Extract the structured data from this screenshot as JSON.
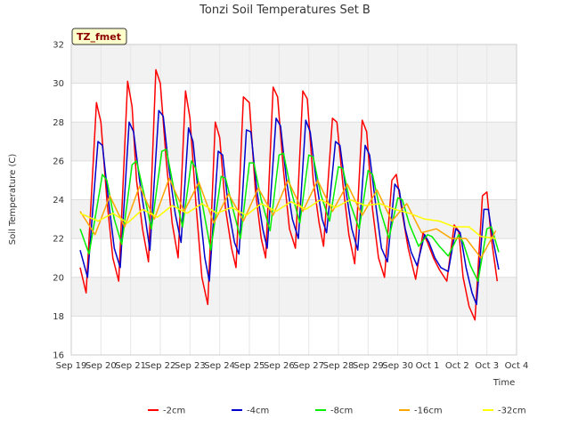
{
  "chart_data": {
    "type": "line",
    "title": "Tonzi Soil Temperatures Set B",
    "xlabel": "Time",
    "ylabel": "Soil Temperature (C)",
    "badge": "TZ_fmet",
    "ylim": [
      16,
      32
    ],
    "yticks": [
      16,
      18,
      20,
      22,
      24,
      26,
      28,
      30,
      32
    ],
    "xlim": [
      0,
      15
    ],
    "xtick_labels": [
      "Sep 19",
      "Sep 20",
      "Sep 21",
      "Sep 22",
      "Sep 23",
      "Sep 24",
      "Sep 25",
      "Sep 26",
      "Sep 27",
      "Sep 28",
      "Sep 29",
      "Sep 30",
      "Oct 1",
      "Oct 2",
      "Oct 3",
      "Oct 4"
    ],
    "legend_position": "bottom",
    "grid": true,
    "series": [
      {
        "name": "-2cm",
        "color": "#ff0000",
        "values": [
          [
            0.3,
            20.5
          ],
          [
            0.5,
            19.2
          ],
          [
            0.85,
            29.0
          ],
          [
            1.0,
            28.0
          ],
          [
            1.2,
            24.0
          ],
          [
            1.4,
            21.0
          ],
          [
            1.6,
            19.8
          ],
          [
            1.9,
            30.1
          ],
          [
            2.05,
            28.8
          ],
          [
            2.2,
            25.0
          ],
          [
            2.4,
            22.5
          ],
          [
            2.6,
            20.8
          ],
          [
            2.85,
            30.7
          ],
          [
            3.0,
            30.0
          ],
          [
            3.2,
            26.0
          ],
          [
            3.4,
            22.8
          ],
          [
            3.6,
            21.0
          ],
          [
            3.85,
            29.6
          ],
          [
            4.0,
            28.2
          ],
          [
            4.2,
            23.8
          ],
          [
            4.4,
            20.0
          ],
          [
            4.6,
            18.6
          ],
          [
            4.85,
            28.0
          ],
          [
            5.0,
            27.2
          ],
          [
            5.2,
            23.5
          ],
          [
            5.4,
            21.5
          ],
          [
            5.55,
            20.5
          ],
          [
            5.8,
            29.3
          ],
          [
            6.0,
            29.0
          ],
          [
            6.2,
            24.5
          ],
          [
            6.4,
            22.0
          ],
          [
            6.55,
            21.0
          ],
          [
            6.8,
            29.8
          ],
          [
            6.95,
            29.3
          ],
          [
            7.15,
            25.5
          ],
          [
            7.35,
            22.5
          ],
          [
            7.55,
            21.5
          ],
          [
            7.8,
            29.6
          ],
          [
            7.95,
            29.2
          ],
          [
            8.15,
            25.0
          ],
          [
            8.35,
            22.8
          ],
          [
            8.5,
            21.6
          ],
          [
            8.8,
            28.2
          ],
          [
            8.95,
            28.0
          ],
          [
            9.15,
            24.8
          ],
          [
            9.35,
            22.2
          ],
          [
            9.55,
            20.7
          ],
          [
            9.8,
            28.1
          ],
          [
            9.95,
            27.5
          ],
          [
            10.15,
            23.5
          ],
          [
            10.35,
            21.0
          ],
          [
            10.55,
            20.0
          ],
          [
            10.8,
            25.0
          ],
          [
            10.95,
            25.3
          ],
          [
            11.15,
            23.3
          ],
          [
            11.35,
            21.5
          ],
          [
            11.6,
            19.9
          ],
          [
            11.85,
            22.3
          ],
          [
            12.0,
            21.8
          ],
          [
            12.2,
            21.0
          ],
          [
            12.4,
            20.4
          ],
          [
            12.65,
            19.8
          ],
          [
            12.9,
            22.7
          ],
          [
            13.05,
            22.4
          ],
          [
            13.2,
            20.0
          ],
          [
            13.4,
            18.5
          ],
          [
            13.6,
            17.8
          ],
          [
            13.85,
            24.2
          ],
          [
            14.0,
            24.4
          ],
          [
            14.15,
            22.0
          ],
          [
            14.35,
            19.8
          ]
        ]
      },
      {
        "name": "-4cm",
        "color": "#0000cc",
        "values": [
          [
            0.3,
            21.4
          ],
          [
            0.55,
            20.0
          ],
          [
            0.9,
            27.0
          ],
          [
            1.05,
            26.8
          ],
          [
            1.25,
            24.0
          ],
          [
            1.45,
            21.5
          ],
          [
            1.65,
            20.5
          ],
          [
            1.95,
            28.0
          ],
          [
            2.1,
            27.5
          ],
          [
            2.3,
            25.0
          ],
          [
            2.5,
            23.0
          ],
          [
            2.65,
            21.4
          ],
          [
            2.95,
            28.6
          ],
          [
            3.1,
            28.3
          ],
          [
            3.3,
            25.5
          ],
          [
            3.5,
            23.3
          ],
          [
            3.7,
            21.8
          ],
          [
            3.95,
            27.7
          ],
          [
            4.1,
            27.0
          ],
          [
            4.3,
            24.0
          ],
          [
            4.5,
            21.0
          ],
          [
            4.65,
            19.8
          ],
          [
            4.95,
            26.5
          ],
          [
            5.1,
            26.3
          ],
          [
            5.3,
            23.5
          ],
          [
            5.5,
            21.8
          ],
          [
            5.65,
            21.2
          ],
          [
            5.9,
            27.6
          ],
          [
            6.05,
            27.5
          ],
          [
            6.25,
            24.5
          ],
          [
            6.45,
            22.5
          ],
          [
            6.6,
            21.5
          ],
          [
            6.9,
            28.2
          ],
          [
            7.05,
            27.8
          ],
          [
            7.25,
            25.0
          ],
          [
            7.45,
            23.0
          ],
          [
            7.65,
            22.0
          ],
          [
            7.9,
            28.1
          ],
          [
            8.05,
            27.5
          ],
          [
            8.25,
            25.0
          ],
          [
            8.45,
            23.0
          ],
          [
            8.6,
            22.3
          ],
          [
            8.9,
            27.0
          ],
          [
            9.05,
            26.8
          ],
          [
            9.25,
            24.5
          ],
          [
            9.45,
            22.5
          ],
          [
            9.65,
            21.4
          ],
          [
            9.9,
            26.8
          ],
          [
            10.05,
            26.3
          ],
          [
            10.25,
            23.8
          ],
          [
            10.45,
            21.5
          ],
          [
            10.65,
            20.8
          ],
          [
            10.9,
            24.8
          ],
          [
            11.05,
            24.5
          ],
          [
            11.25,
            22.5
          ],
          [
            11.45,
            21.3
          ],
          [
            11.65,
            20.6
          ],
          [
            11.9,
            22.2
          ],
          [
            12.05,
            21.8
          ],
          [
            12.25,
            21.0
          ],
          [
            12.45,
            20.5
          ],
          [
            12.7,
            20.3
          ],
          [
            12.95,
            22.5
          ],
          [
            13.1,
            22.3
          ],
          [
            13.3,
            20.5
          ],
          [
            13.5,
            19.2
          ],
          [
            13.65,
            18.6
          ],
          [
            13.9,
            23.5
          ],
          [
            14.05,
            23.5
          ],
          [
            14.2,
            22.0
          ],
          [
            14.4,
            20.4
          ]
        ]
      },
      {
        "name": "-8cm",
        "color": "#00ee00",
        "values": [
          [
            0.3,
            22.5
          ],
          [
            0.6,
            21.2
          ],
          [
            1.05,
            25.3
          ],
          [
            1.2,
            25.0
          ],
          [
            1.45,
            23.0
          ],
          [
            1.7,
            21.7
          ],
          [
            2.05,
            25.8
          ],
          [
            2.2,
            26.0
          ],
          [
            2.45,
            24.3
          ],
          [
            2.7,
            22.5
          ],
          [
            3.05,
            26.5
          ],
          [
            3.2,
            26.6
          ],
          [
            3.45,
            24.6
          ],
          [
            3.75,
            22.6
          ],
          [
            4.05,
            26.0
          ],
          [
            4.2,
            25.6
          ],
          [
            4.45,
            23.5
          ],
          [
            4.7,
            21.4
          ],
          [
            5.05,
            25.2
          ],
          [
            5.2,
            25.1
          ],
          [
            5.45,
            23.5
          ],
          [
            5.7,
            22.0
          ],
          [
            6.0,
            25.9
          ],
          [
            6.15,
            25.9
          ],
          [
            6.4,
            24.0
          ],
          [
            6.7,
            22.4
          ],
          [
            7.0,
            26.3
          ],
          [
            7.15,
            26.4
          ],
          [
            7.4,
            24.5
          ],
          [
            7.7,
            22.8
          ],
          [
            8.0,
            26.3
          ],
          [
            8.15,
            26.2
          ],
          [
            8.4,
            24.3
          ],
          [
            8.7,
            22.9
          ],
          [
            9.0,
            25.7
          ],
          [
            9.15,
            25.6
          ],
          [
            9.4,
            23.8
          ],
          [
            9.7,
            22.5
          ],
          [
            10.0,
            25.5
          ],
          [
            10.15,
            25.3
          ],
          [
            10.4,
            23.5
          ],
          [
            10.7,
            22.0
          ],
          [
            11.0,
            24.1
          ],
          [
            11.15,
            24.0
          ],
          [
            11.4,
            22.7
          ],
          [
            11.7,
            21.6
          ],
          [
            12.0,
            22.2
          ],
          [
            12.15,
            22.1
          ],
          [
            12.4,
            21.6
          ],
          [
            12.7,
            21.1
          ],
          [
            13.05,
            22.2
          ],
          [
            13.2,
            21.8
          ],
          [
            13.45,
            20.6
          ],
          [
            13.7,
            19.8
          ],
          [
            14.0,
            22.5
          ],
          [
            14.15,
            22.6
          ],
          [
            14.4,
            21.3
          ]
        ]
      },
      {
        "name": "-16cm",
        "color": "#ffa500",
        "values": [
          [
            0.3,
            23.4
          ],
          [
            0.8,
            22.2
          ],
          [
            1.3,
            24.2
          ],
          [
            1.8,
            22.6
          ],
          [
            2.3,
            24.7
          ],
          [
            2.8,
            23.0
          ],
          [
            3.3,
            25.1
          ],
          [
            3.8,
            23.4
          ],
          [
            4.3,
            24.9
          ],
          [
            4.8,
            22.8
          ],
          [
            5.3,
            24.3
          ],
          [
            5.8,
            22.9
          ],
          [
            6.3,
            24.6
          ],
          [
            6.8,
            23.2
          ],
          [
            7.3,
            25.0
          ],
          [
            7.8,
            23.4
          ],
          [
            8.3,
            25.0
          ],
          [
            8.8,
            23.4
          ],
          [
            9.3,
            24.8
          ],
          [
            9.8,
            23.2
          ],
          [
            10.3,
            24.5
          ],
          [
            10.8,
            22.9
          ],
          [
            11.3,
            23.8
          ],
          [
            11.8,
            22.3
          ],
          [
            12.3,
            22.5
          ],
          [
            12.8,
            22.0
          ],
          [
            13.3,
            22.0
          ],
          [
            13.8,
            21.0
          ],
          [
            14.3,
            22.4
          ]
        ]
      },
      {
        "name": "-32cm",
        "color": "#ffff00",
        "values": [
          [
            0.3,
            23.3
          ],
          [
            0.9,
            22.9
          ],
          [
            1.4,
            23.3
          ],
          [
            1.9,
            22.8
          ],
          [
            2.4,
            23.5
          ],
          [
            2.9,
            23.1
          ],
          [
            3.4,
            23.7
          ],
          [
            3.9,
            23.3
          ],
          [
            4.4,
            23.8
          ],
          [
            4.9,
            23.3
          ],
          [
            5.4,
            23.6
          ],
          [
            5.9,
            23.2
          ],
          [
            6.4,
            23.8
          ],
          [
            6.9,
            23.4
          ],
          [
            7.4,
            23.9
          ],
          [
            7.9,
            23.5
          ],
          [
            8.4,
            24.0
          ],
          [
            8.9,
            23.6
          ],
          [
            9.4,
            24.0
          ],
          [
            9.9,
            23.7
          ],
          [
            10.4,
            23.8
          ],
          [
            10.9,
            23.5
          ],
          [
            11.4,
            23.3
          ],
          [
            11.9,
            23.0
          ],
          [
            12.4,
            22.9
          ],
          [
            12.9,
            22.6
          ],
          [
            13.4,
            22.6
          ],
          [
            13.8,
            22.1
          ],
          [
            14.3,
            22.0
          ]
        ]
      }
    ]
  }
}
